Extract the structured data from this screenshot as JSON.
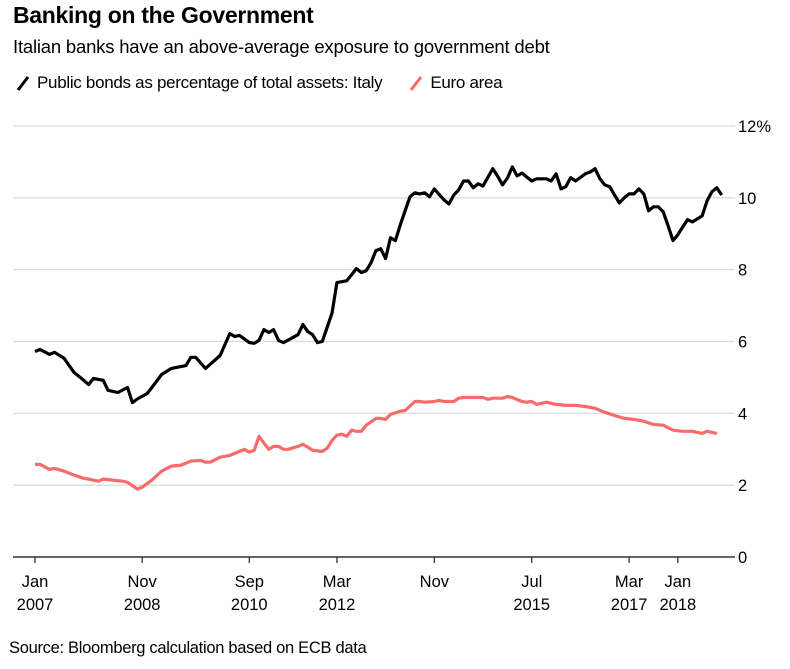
{
  "title": "Banking on the Government",
  "subtitle": "Italian banks have an above-average exposure to government debt",
  "source": "Source: Bloomberg calculation based on ECB data",
  "colors": {
    "italy": "#000000",
    "euro": "#f86b6b",
    "grid": "#dcdcdc",
    "axis": "#333333"
  },
  "legend": [
    {
      "label": "Public bonds as percentage of total assets: Italy",
      "color": "#000000"
    },
    {
      "label": "Euro area",
      "color": "#f86b6b"
    }
  ],
  "chart_data": {
    "type": "line",
    "title": "Banking on the Government",
    "subtitle": "Italian banks have an above-average exposure to government debt",
    "xlabel": "",
    "ylabel": "",
    "ylim": [
      0,
      12
    ],
    "xlim": [
      "2006-12",
      "2019-01"
    ],
    "grid": true,
    "legend_position": "top-left",
    "y_ticks": [
      {
        "value": 0,
        "label": "0"
      },
      {
        "value": 2,
        "label": "2"
      },
      {
        "value": 4,
        "label": "4"
      },
      {
        "value": 6,
        "label": "6"
      },
      {
        "value": 8,
        "label": "8"
      },
      {
        "value": 10,
        "label": "10"
      },
      {
        "value": 12,
        "label": "12%"
      }
    ],
    "x_ticks": [
      {
        "date": "2007-01",
        "month": "Jan",
        "year": "2007"
      },
      {
        "date": "2008-11",
        "month": "Nov",
        "year": "2008"
      },
      {
        "date": "2010-09",
        "month": "Sep",
        "year": "2010"
      },
      {
        "date": "2012-03",
        "month": "Mar",
        "year": "2012"
      },
      {
        "date": "2013-11",
        "month": "Nov",
        "year": ""
      },
      {
        "date": "2015-07",
        "month": "Jul",
        "year": "2015"
      },
      {
        "date": "2017-03",
        "month": "Mar",
        "year": "2017"
      },
      {
        "date": "2018-01",
        "month": "Jan",
        "year": "2018"
      }
    ],
    "series": [
      {
        "name": "Public bonds as percentage of total assets: Italy",
        "color": "#000000",
        "points": [
          [
            "2007-01",
            5.72
          ],
          [
            "2007-02",
            5.78
          ],
          [
            "2007-04",
            5.64
          ],
          [
            "2007-05",
            5.7
          ],
          [
            "2007-07",
            5.53
          ],
          [
            "2007-09",
            5.14
          ],
          [
            "2007-11",
            4.92
          ],
          [
            "2007-12",
            4.8
          ],
          [
            "2008-01",
            4.97
          ],
          [
            "2008-03",
            4.92
          ],
          [
            "2008-04",
            4.64
          ],
          [
            "2008-06",
            4.58
          ],
          [
            "2008-08",
            4.72
          ],
          [
            "2008-09",
            4.3
          ],
          [
            "2008-10",
            4.4
          ],
          [
            "2008-12",
            4.55
          ],
          [
            "2009-01",
            4.72
          ],
          [
            "2009-03",
            5.08
          ],
          [
            "2009-05",
            5.25
          ],
          [
            "2009-08",
            5.33
          ],
          [
            "2009-09",
            5.56
          ],
          [
            "2009-10",
            5.56
          ],
          [
            "2009-12",
            5.25
          ],
          [
            "2010-03",
            5.61
          ],
          [
            "2010-05",
            6.22
          ],
          [
            "2010-06",
            6.14
          ],
          [
            "2010-07",
            6.17
          ],
          [
            "2010-09",
            5.97
          ],
          [
            "2010-10",
            5.95
          ],
          [
            "2010-11",
            6.03
          ],
          [
            "2010-12",
            6.33
          ],
          [
            "2011-01",
            6.25
          ],
          [
            "2011-02",
            6.33
          ],
          [
            "2011-03",
            6.03
          ],
          [
            "2011-04",
            5.97
          ],
          [
            "2011-07",
            6.19
          ],
          [
            "2011-08",
            6.47
          ],
          [
            "2011-09",
            6.28
          ],
          [
            "2011-10",
            6.19
          ],
          [
            "2011-11",
            5.97
          ],
          [
            "2011-12",
            6.0
          ],
          [
            "2012-02",
            6.8
          ],
          [
            "2012-03",
            7.64
          ],
          [
            "2012-05",
            7.69
          ],
          [
            "2012-06",
            7.86
          ],
          [
            "2012-07",
            8.03
          ],
          [
            "2012-08",
            7.92
          ],
          [
            "2012-09",
            7.97
          ],
          [
            "2012-10",
            8.19
          ],
          [
            "2012-11",
            8.53
          ],
          [
            "2012-12",
            8.58
          ],
          [
            "2013-01",
            8.31
          ],
          [
            "2013-02",
            8.89
          ],
          [
            "2013-03",
            8.81
          ],
          [
            "2013-04",
            9.25
          ],
          [
            "2013-05",
            9.64
          ],
          [
            "2013-06",
            10.03
          ],
          [
            "2013-07",
            10.14
          ],
          [
            "2013-08",
            10.11
          ],
          [
            "2013-09",
            10.14
          ],
          [
            "2013-10",
            10.03
          ],
          [
            "2013-11",
            10.25
          ],
          [
            "2014-01",
            9.94
          ],
          [
            "2014-02",
            9.83
          ],
          [
            "2014-03",
            10.08
          ],
          [
            "2014-04",
            10.22
          ],
          [
            "2014-05",
            10.47
          ],
          [
            "2014-06",
            10.47
          ],
          [
            "2014-07",
            10.28
          ],
          [
            "2014-08",
            10.39
          ],
          [
            "2014-09",
            10.33
          ],
          [
            "2014-11",
            10.81
          ],
          [
            "2014-12",
            10.6
          ],
          [
            "2015-01",
            10.36
          ],
          [
            "2015-02",
            10.55
          ],
          [
            "2015-03",
            10.86
          ],
          [
            "2015-04",
            10.61
          ],
          [
            "2015-05",
            10.69
          ],
          [
            "2015-07",
            10.47
          ],
          [
            "2015-08",
            10.53
          ],
          [
            "2015-10",
            10.53
          ],
          [
            "2015-11",
            10.47
          ],
          [
            "2015-12",
            10.67
          ],
          [
            "2016-01",
            10.25
          ],
          [
            "2016-02",
            10.31
          ],
          [
            "2016-03",
            10.56
          ],
          [
            "2016-04",
            10.47
          ],
          [
            "2016-06",
            10.67
          ],
          [
            "2016-07",
            10.72
          ],
          [
            "2016-08",
            10.81
          ],
          [
            "2016-09",
            10.53
          ],
          [
            "2016-10",
            10.36
          ],
          [
            "2016-11",
            10.31
          ],
          [
            "2016-12",
            10.08
          ],
          [
            "2017-01",
            9.86
          ],
          [
            "2017-02",
            10.0
          ],
          [
            "2017-03",
            10.11
          ],
          [
            "2017-04",
            10.11
          ],
          [
            "2017-05",
            10.25
          ],
          [
            "2017-06",
            10.11
          ],
          [
            "2017-07",
            9.64
          ],
          [
            "2017-08",
            9.75
          ],
          [
            "2017-09",
            9.75
          ],
          [
            "2017-10",
            9.61
          ],
          [
            "2017-11",
            9.22
          ],
          [
            "2017-12",
            8.81
          ],
          [
            "2018-01",
            8.97
          ],
          [
            "2018-02",
            9.19
          ],
          [
            "2018-03",
            9.39
          ],
          [
            "2018-04",
            9.33
          ],
          [
            "2018-06",
            9.5
          ],
          [
            "2018-07",
            9.92
          ],
          [
            "2018-08",
            10.17
          ],
          [
            "2018-09",
            10.28
          ],
          [
            "2018-10",
            10.08
          ]
        ]
      },
      {
        "name": "Euro area",
        "color": "#f86b6b",
        "points": [
          [
            "2007-01",
            2.58
          ],
          [
            "2007-02",
            2.58
          ],
          [
            "2007-04",
            2.44
          ],
          [
            "2007-05",
            2.47
          ],
          [
            "2007-07",
            2.39
          ],
          [
            "2007-09",
            2.28
          ],
          [
            "2007-11",
            2.19
          ],
          [
            "2007-12",
            2.17
          ],
          [
            "2008-02",
            2.11
          ],
          [
            "2008-03",
            2.17
          ],
          [
            "2008-05",
            2.14
          ],
          [
            "2008-07",
            2.11
          ],
          [
            "2008-08",
            2.08
          ],
          [
            "2008-10",
            1.89
          ],
          [
            "2008-11",
            1.94
          ],
          [
            "2009-01",
            2.14
          ],
          [
            "2009-03",
            2.39
          ],
          [
            "2009-05",
            2.53
          ],
          [
            "2009-07",
            2.56
          ],
          [
            "2009-09",
            2.67
          ],
          [
            "2009-11",
            2.69
          ],
          [
            "2009-12",
            2.64
          ],
          [
            "2010-01",
            2.64
          ],
          [
            "2010-03",
            2.78
          ],
          [
            "2010-05",
            2.83
          ],
          [
            "2010-07",
            2.94
          ],
          [
            "2010-08",
            3.0
          ],
          [
            "2010-09",
            2.92
          ],
          [
            "2010-10",
            2.97
          ],
          [
            "2010-11",
            3.36
          ],
          [
            "2010-12",
            3.17
          ],
          [
            "2011-01",
            3.0
          ],
          [
            "2011-02",
            3.08
          ],
          [
            "2011-03",
            3.08
          ],
          [
            "2011-04",
            3.0
          ],
          [
            "2011-05",
            3.0
          ],
          [
            "2011-07",
            3.08
          ],
          [
            "2011-08",
            3.14
          ],
          [
            "2011-09",
            3.06
          ],
          [
            "2011-10",
            2.97
          ],
          [
            "2011-12",
            2.94
          ],
          [
            "2012-01",
            3.03
          ],
          [
            "2012-02",
            3.25
          ],
          [
            "2012-03",
            3.39
          ],
          [
            "2012-04",
            3.42
          ],
          [
            "2012-05",
            3.36
          ],
          [
            "2012-06",
            3.53
          ],
          [
            "2012-07",
            3.5
          ],
          [
            "2012-08",
            3.5
          ],
          [
            "2012-09",
            3.67
          ],
          [
            "2012-11",
            3.86
          ],
          [
            "2012-12",
            3.86
          ],
          [
            "2013-01",
            3.83
          ],
          [
            "2013-02",
            3.97
          ],
          [
            "2013-04",
            4.06
          ],
          [
            "2013-05",
            4.08
          ],
          [
            "2013-07",
            4.33
          ],
          [
            "2013-08",
            4.33
          ],
          [
            "2013-09",
            4.31
          ],
          [
            "2013-11",
            4.33
          ],
          [
            "2013-12",
            4.36
          ],
          [
            "2014-01",
            4.33
          ],
          [
            "2014-03",
            4.33
          ],
          [
            "2014-04",
            4.42
          ],
          [
            "2014-05",
            4.44
          ],
          [
            "2014-07",
            4.44
          ],
          [
            "2014-09",
            4.44
          ],
          [
            "2014-10",
            4.39
          ],
          [
            "2014-11",
            4.42
          ],
          [
            "2015-01",
            4.42
          ],
          [
            "2015-02",
            4.47
          ],
          [
            "2015-03",
            4.44
          ],
          [
            "2015-05",
            4.33
          ],
          [
            "2015-06",
            4.31
          ],
          [
            "2015-07",
            4.33
          ],
          [
            "2015-08",
            4.25
          ],
          [
            "2015-10",
            4.31
          ],
          [
            "2015-12",
            4.25
          ],
          [
            "2016-02",
            4.22
          ],
          [
            "2016-04",
            4.22
          ],
          [
            "2016-06",
            4.19
          ],
          [
            "2016-08",
            4.14
          ],
          [
            "2016-10",
            4.03
          ],
          [
            "2016-12",
            3.94
          ],
          [
            "2017-02",
            3.86
          ],
          [
            "2017-04",
            3.83
          ],
          [
            "2017-06",
            3.78
          ],
          [
            "2017-08",
            3.69
          ],
          [
            "2017-10",
            3.67
          ],
          [
            "2017-12",
            3.53
          ],
          [
            "2018-02",
            3.5
          ],
          [
            "2018-04",
            3.5
          ],
          [
            "2018-06",
            3.44
          ],
          [
            "2018-07",
            3.5
          ],
          [
            "2018-09",
            3.44
          ]
        ]
      }
    ]
  }
}
